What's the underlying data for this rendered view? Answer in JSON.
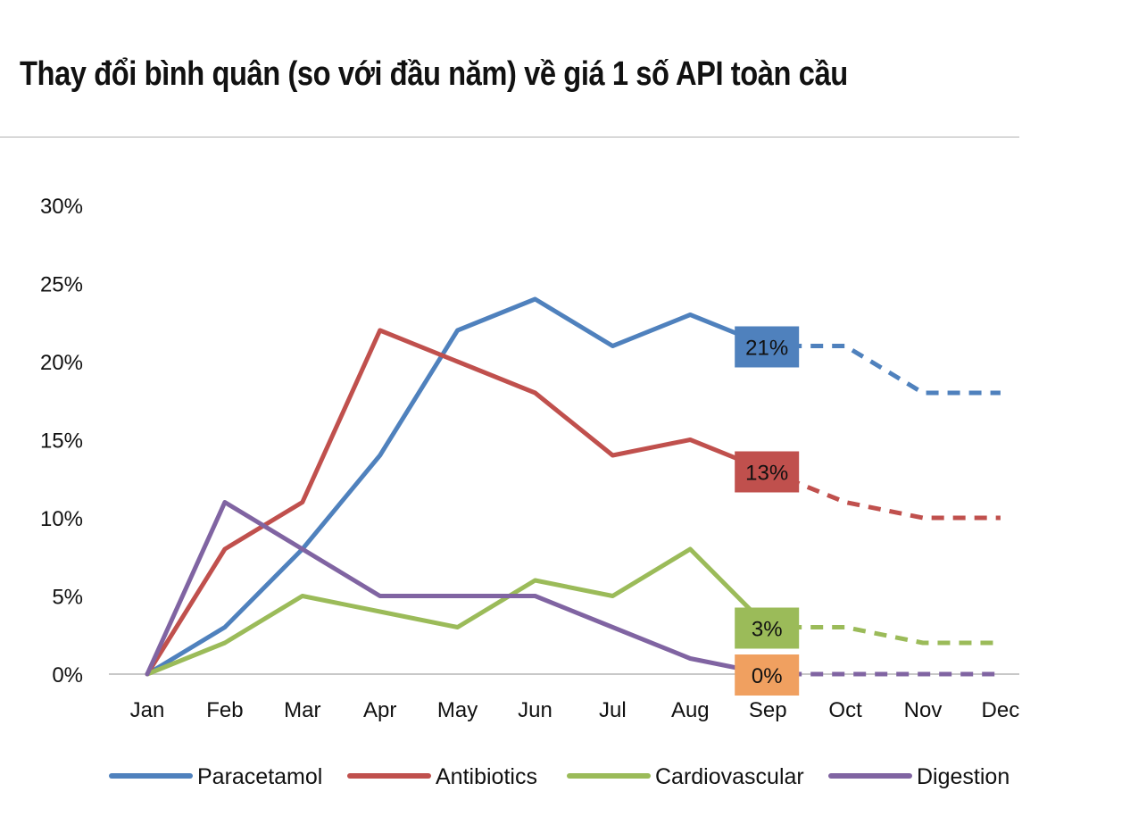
{
  "title": "Thay đổi bình quân (so với đầu năm) về giá 1 số API toàn cầu",
  "chart_data": {
    "type": "line",
    "title": "Thay đổi bình quân (so với đầu năm) về giá 1 số API toàn cầu",
    "categories": [
      "Jan",
      "Feb",
      "Mar",
      "Apr",
      "May",
      "Jun",
      "Jul",
      "Aug",
      "Sep",
      "Oct",
      "Nov",
      "Dec"
    ],
    "ylim": [
      0,
      30
    ],
    "yticks": [
      0,
      5,
      10,
      15,
      20,
      25,
      30
    ],
    "ytick_labels": [
      "0%",
      "5%",
      "10%",
      "15%",
      "20%",
      "25%",
      "30%"
    ],
    "grid": false,
    "legend_position": "bottom",
    "solid_until_index": 8,
    "dashed_from_index": 8,
    "series": [
      {
        "name": "Paracetamol",
        "color": "#4f81bd",
        "values": [
          0,
          3,
          8,
          14,
          22,
          24,
          21,
          23,
          21,
          21,
          18,
          18
        ],
        "end_label": "21%",
        "label_bg": "#4f81bd",
        "label_color": "#111111"
      },
      {
        "name": "Antibiotics",
        "color": "#c0504d",
        "values": [
          0,
          8,
          11,
          22,
          20,
          18,
          14,
          15,
          13,
          11,
          10,
          10
        ],
        "end_label": "13%",
        "label_bg": "#c0504d",
        "label_color": "#111111"
      },
      {
        "name": "Cardiovascular",
        "color": "#9bbb59",
        "values": [
          0,
          2,
          5,
          4,
          3,
          6,
          5,
          8,
          3,
          3,
          2,
          2
        ],
        "end_label": "3%",
        "label_bg": "#9bbb59",
        "label_color": "#111111"
      },
      {
        "name": "Digestion",
        "color": "#8064a2",
        "values": [
          0,
          11,
          8,
          5,
          5,
          5,
          3,
          1,
          0,
          0,
          0,
          0
        ],
        "end_label": "0%",
        "label_bg": "#f0a060",
        "label_color": "#111111"
      }
    ]
  }
}
